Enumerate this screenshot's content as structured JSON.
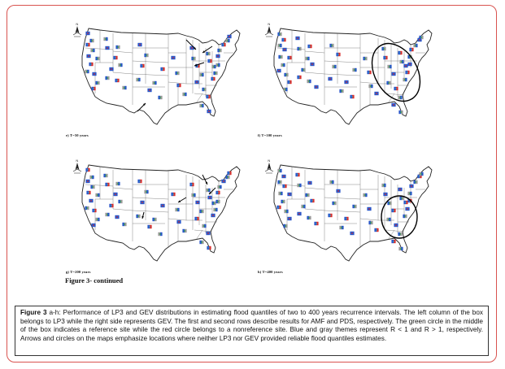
{
  "panels": [
    {
      "id": "e",
      "label": "e) T=50 years"
    },
    {
      "id": "f",
      "label": "f) T=100 years"
    },
    {
      "id": "g",
      "label": "g) T=200 years"
    },
    {
      "id": "h",
      "label": "h) T=400 years"
    }
  ],
  "figure_continued": "Figure 3- continued",
  "caption": {
    "lead": "Figure 3",
    "lead_suffix": " a-h:",
    "text": " Performance of LP3 and GEV distributions in estimating flood quantiles of two to 400 years recurrence intervals. The left column of the box belongs to LP3 while the right side represents GEV. The first and second rows describe results for AMF and PDS, respectively. The green circle in the middle of the box indicates a reference site while the red circle belongs to a nonreference site. Blue and gray themes represent R < 1 and R > 1, respectively. Arrows and circles on the maps emphasize locations where neither LP3 nor GEV provided reliable flood quantiles estimates."
  },
  "colors": {
    "frame_border": "#d9534f",
    "marker_blue": "#2b57c9",
    "marker_gray": "#9a9a9a",
    "marker_red": "#d8302f",
    "marker_green": "#2ea84a",
    "marker_cyan": "#2aa6c8",
    "state_lines": "#555555"
  },
  "compass_icon": "north-arrow-icon"
}
